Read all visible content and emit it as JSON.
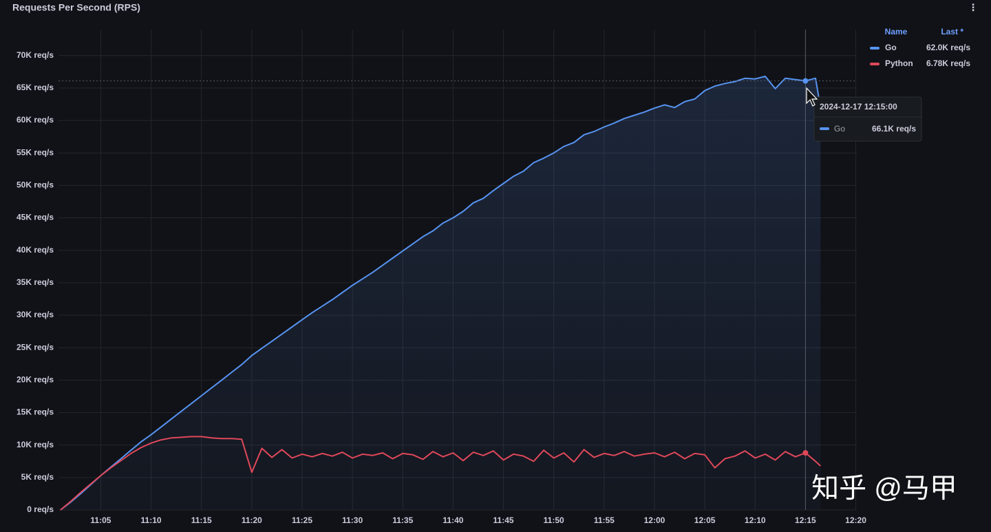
{
  "chart_data": {
    "type": "line",
    "title": "Requests Per Second (RPS)",
    "x": [
      661,
      662,
      663,
      664,
      665,
      666,
      667,
      668,
      669,
      670,
      671,
      672,
      673,
      674,
      675,
      676,
      677,
      678,
      679,
      680,
      681,
      682,
      683,
      684,
      685,
      686,
      687,
      688,
      689,
      690,
      691,
      692,
      693,
      694,
      695,
      696,
      697,
      698,
      699,
      700,
      701,
      702,
      703,
      704,
      705,
      706,
      707,
      708,
      709,
      710,
      711,
      712,
      713,
      714,
      715,
      716,
      717,
      718,
      719,
      720,
      721,
      722,
      723,
      724,
      725,
      726,
      727,
      728,
      729,
      730,
      731,
      732,
      733,
      734,
      735,
      736,
      736.5
    ],
    "series": [
      {
        "name": "Go",
        "color": "#5794f2",
        "last_label": "62.0K req/s",
        "fill": true,
        "values": [
          0,
          1200,
          2500,
          3900,
          5300,
          6600,
          7900,
          9200,
          10500,
          11600,
          12800,
          14000,
          15200,
          16400,
          17600,
          18800,
          20000,
          21200,
          22400,
          23800,
          24900,
          26000,
          27100,
          28200,
          29300,
          30400,
          31400,
          32400,
          33500,
          34600,
          35600,
          36600,
          37700,
          38800,
          39900,
          41000,
          42100,
          43000,
          44200,
          45000,
          46000,
          47300,
          48000,
          49200,
          50300,
          51400,
          52200,
          53500,
          54200,
          55000,
          56000,
          56600,
          57800,
          58300,
          59000,
          59600,
          60300,
          60800,
          61300,
          61900,
          62400,
          62000,
          62900,
          63300,
          64600,
          65300,
          65700,
          66000,
          66500,
          66400,
          66800,
          64900,
          66500,
          66300,
          66100,
          66500,
          62000
        ]
      },
      {
        "name": "Python",
        "color": "#e0485a",
        "last_label": "6.78K req/s",
        "fill": false,
        "values": [
          0,
          1300,
          2700,
          4000,
          5300,
          6500,
          7600,
          8700,
          9600,
          10300,
          10800,
          11100,
          11200,
          11300,
          11300,
          11100,
          11000,
          11000,
          10900,
          5800,
          9500,
          8100,
          9300,
          8000,
          8600,
          8200,
          8700,
          8300,
          8900,
          8000,
          8600,
          8400,
          8800,
          7900,
          8700,
          8500,
          7800,
          9000,
          8200,
          8800,
          7600,
          8900,
          8400,
          9100,
          7700,
          8600,
          8300,
          7500,
          9200,
          8000,
          8800,
          7400,
          9300,
          8100,
          8700,
          8400,
          9000,
          8300,
          8600,
          8800,
          8200,
          8900,
          7900,
          8700,
          8500,
          6500,
          7900,
          8300,
          9100,
          8000,
          8600,
          7700,
          9000,
          8200,
          8800,
          7500,
          6780
        ]
      }
    ],
    "legend": {
      "name_header": "Name",
      "value_header": "Last *"
    },
    "tooltip": {
      "x": 735,
      "time": "2024-12-17 12:15:00",
      "series": "Go",
      "value_label": "66.1K req/s"
    },
    "watermark": "知乎 @马甲",
    "xlim": [
      660.8,
      740.1
    ],
    "ylim": [
      0,
      74000
    ],
    "xticks": [
      {
        "value": 665,
        "label": "11:05"
      },
      {
        "value": 670,
        "label": "11:10"
      },
      {
        "value": 675,
        "label": "11:15"
      },
      {
        "value": 680,
        "label": "11:20"
      },
      {
        "value": 685,
        "label": "11:25"
      },
      {
        "value": 690,
        "label": "11:30"
      },
      {
        "value": 695,
        "label": "11:35"
      },
      {
        "value": 700,
        "label": "11:40"
      },
      {
        "value": 705,
        "label": "11:45"
      },
      {
        "value": 710,
        "label": "11:50"
      },
      {
        "value": 715,
        "label": "11:55"
      },
      {
        "value": 720,
        "label": "12:00"
      },
      {
        "value": 725,
        "label": "12:05"
      },
      {
        "value": 730,
        "label": "12:10"
      },
      {
        "value": 735,
        "label": "12:15"
      },
      {
        "value": 740,
        "label": "12:20"
      }
    ],
    "yticks": [
      {
        "value": 0,
        "label": "0 req/s"
      },
      {
        "value": 5000,
        "label": "5K req/s"
      },
      {
        "value": 10000,
        "label": "10K req/s"
      },
      {
        "value": 15000,
        "label": "15K req/s"
      },
      {
        "value": 20000,
        "label": "20K req/s"
      },
      {
        "value": 25000,
        "label": "25K req/s"
      },
      {
        "value": 30000,
        "label": "30K req/s"
      },
      {
        "value": 35000,
        "label": "35K req/s"
      },
      {
        "value": 40000,
        "label": "40K req/s"
      },
      {
        "value": 45000,
        "label": "45K req/s"
      },
      {
        "value": 50000,
        "label": "50K req/s"
      },
      {
        "value": 55000,
        "label": "55K req/s"
      },
      {
        "value": 60000,
        "label": "60K req/s"
      },
      {
        "value": 65000,
        "label": "65K req/s"
      },
      {
        "value": 70000,
        "label": "70K req/s"
      }
    ],
    "grid": true
  }
}
